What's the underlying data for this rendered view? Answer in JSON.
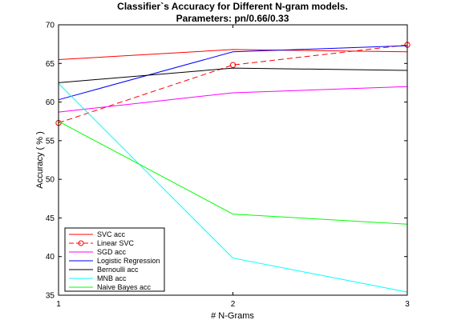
{
  "chart_data": {
    "type": "line",
    "title": "Classifier`s Accuracy for Different N-gram models.",
    "subtitle": "Parameters: pn/0.66/0.33",
    "xlabel": "# N-Grams",
    "ylabel": "Accuracy ( % )",
    "x": [
      1,
      2,
      3
    ],
    "xlim": [
      1,
      3
    ],
    "ylim": [
      35,
      70
    ],
    "xticks": [
      "1",
      "2",
      "3"
    ],
    "yticks": [
      "35",
      "40",
      "45",
      "50",
      "55",
      "60",
      "65",
      "70"
    ],
    "grid": false,
    "legend_position": "bottom-left",
    "series": [
      {
        "name": "SVC acc",
        "values": [
          65.5,
          66.8,
          66.5
        ],
        "color": "#ff0000",
        "dash": "solid",
        "marker": "none"
      },
      {
        "name": "Linear SVC",
        "values": [
          57.3,
          64.8,
          67.4
        ],
        "color": "#ff0000",
        "dash": "dashed",
        "marker": "circle"
      },
      {
        "name": "SGD acc",
        "values": [
          58.7,
          61.2,
          62.0
        ],
        "color": "#ff00ff",
        "dash": "solid",
        "marker": "none"
      },
      {
        "name": "Logistic Regression",
        "values": [
          60.3,
          66.5,
          67.3
        ],
        "color": "#0000ff",
        "dash": "solid",
        "marker": "none"
      },
      {
        "name": "Bernoulli acc",
        "values": [
          62.5,
          64.4,
          64.1
        ],
        "color": "#000000",
        "dash": "solid",
        "marker": "none"
      },
      {
        "name": "MNB acc",
        "values": [
          62.4,
          39.8,
          35.4
        ],
        "color": "#00ffff",
        "dash": "solid",
        "marker": "none"
      },
      {
        "name": "Naive Bayes acc",
        "values": [
          57.5,
          45.5,
          44.2
        ],
        "color": "#00ff00",
        "dash": "solid",
        "marker": "none"
      }
    ]
  }
}
